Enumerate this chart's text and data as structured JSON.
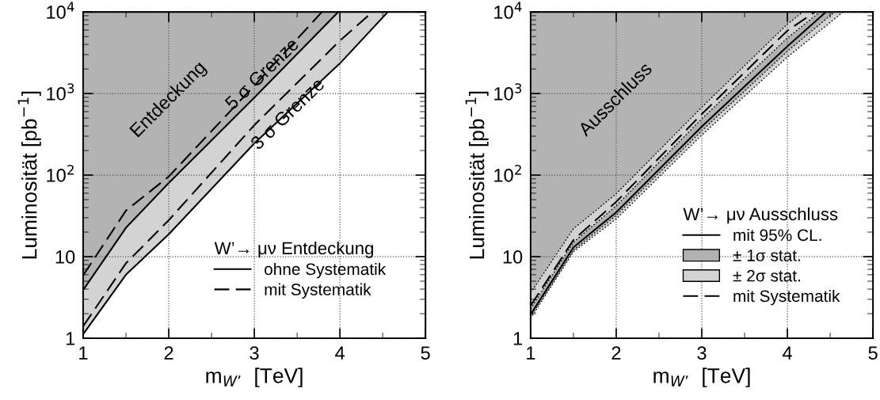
{
  "chart_data": [
    {
      "type": "line",
      "xlabel": "m$_{W’}$  [TeV]",
      "ylabel": "Luminosität [pb$^{−1}$]",
      "log": "y",
      "grid": true,
      "legend": "bottom right",
      "legend_title": "W’→ μν Entdeckung",
      "xlim": [
        1,
        5
      ],
      "xticks": [
        1,
        2,
        3,
        4,
        5
      ],
      "ylim": [
        1,
        10000
      ],
      "yticks": [
        1,
        10,
        {
          "value": 100,
          "label": "10$^{2}$"
        },
        {
          "value": 1000,
          "label": "10$^{3}$"
        },
        {
          "value": 10000,
          "label": "10$^{4}$"
        }
      ],
      "annotations": [
        "Entdeckung",
        {
          "text": "5 σ Grenze",
          "x": 3.1,
          "y": 1700
        },
        {
          "text": "3 σ Grenze",
          "x": 3.4,
          "y": 550
        }
      ],
      "series": [
        {
          "type": "area",
          "color": "#d3d3d3",
          "line_style": "solid",
          "x": [
            1,
            1.5,
            2,
            3,
            4,
            4.56
          ],
          "values": [
            1.12,
            6.0,
            18.8,
            245,
            2340,
            10000
          ]
        },
        {
          "type": "area",
          "name": "ohne Systematik",
          "color": "#b3b3b3",
          "line_style": "solid",
          "x": [
            1,
            1.5,
            2,
            3,
            3.98
          ],
          "values": [
            3.9,
            22.6,
            80,
            890,
            10000
          ]
        },
        {
          "name": "mit Systematik",
          "color": "#010101",
          "line_style": "dashed",
          "x": [
            1,
            1.5,
            2,
            3,
            3.79
          ],
          "values": [
            5.9,
            36.7,
            96,
            1250,
            10000
          ]
        },
        {
          "color": "#030303",
          "line_style": "dashed",
          "x": [
            1,
            1.5,
            2,
            3,
            4,
            4.38
          ],
          "values": [
            1.4,
            8.3,
            28,
            410,
            4450,
            10000
          ]
        }
      ]
    },
    {
      "type": "line",
      "xlabel": "m$_{W’}$  [TeV]",
      "ylabel": "Luminosität [pb$^{−1}$]",
      "log": "y",
      "grid": true,
      "legend": "bottom right",
      "legend_title": "W’→ μν Ausschluss",
      "xlim": [
        1,
        5
      ],
      "xticks": [
        1,
        2,
        3,
        4,
        5
      ],
      "ylim": [
        1,
        10000
      ],
      "yticks": [
        1,
        10,
        {
          "value": 100,
          "label": "10$^{2}$"
        },
        {
          "value": 1000,
          "label": "10$^{3}$"
        },
        {
          "value": 10000,
          "label": "10$^{4}$"
        }
      ],
      "annotations": [
        "Ausschluss"
      ],
      "series": [
        {
          "type": "area",
          "name": "± 2σ stat.",
          "color": "#d3d3d3",
          "line_style": "dotted",
          "x": [
            1,
            1.5,
            2,
            3,
            4,
            4.65
          ],
          "values": [
            1.75,
            11.5,
            29,
            310,
            2800,
            10000
          ]
        },
        {
          "type": "area",
          "name": "± 1σ stat.",
          "color": "#b1b1b1",
          "line_style": "dotted",
          "x": [
            1,
            1.5,
            2,
            3,
            4,
            4.55
          ],
          "values": [
            1.85,
            12,
            32,
            350,
            3300,
            10000
          ]
        },
        {
          "type": "area",
          "color": "#d2d2d2",
          "line_style": "dotted",
          "x": [
            1,
            1.5,
            2,
            3,
            4,
            4.38
          ],
          "values": [
            2.3,
            15,
            42,
            490,
            4800,
            10000
          ]
        },
        {
          "type": "area",
          "color": "#b3b3b3",
          "line_style": "dotted",
          "x": [
            1,
            1.5,
            2,
            3,
            4,
            4.18
          ],
          "values": [
            3.6,
            22,
            59,
            680,
            7100,
            10000
          ]
        },
        {
          "name": "mit 95% CL.",
          "color": "#000000",
          "line_style": "solid",
          "x": [
            1,
            1.5,
            2,
            3,
            4,
            4.45
          ],
          "values": [
            1.95,
            13,
            35,
            395,
            3800,
            10000
          ]
        },
        {
          "name": "mit Systematik",
          "color": "#010101",
          "line_style": "dashed",
          "x": [
            1,
            1.5,
            2,
            3,
            4,
            4.32
          ],
          "values": [
            2.5,
            16,
            47,
            560,
            5900,
            10000
          ]
        }
      ]
    }
  ]
}
